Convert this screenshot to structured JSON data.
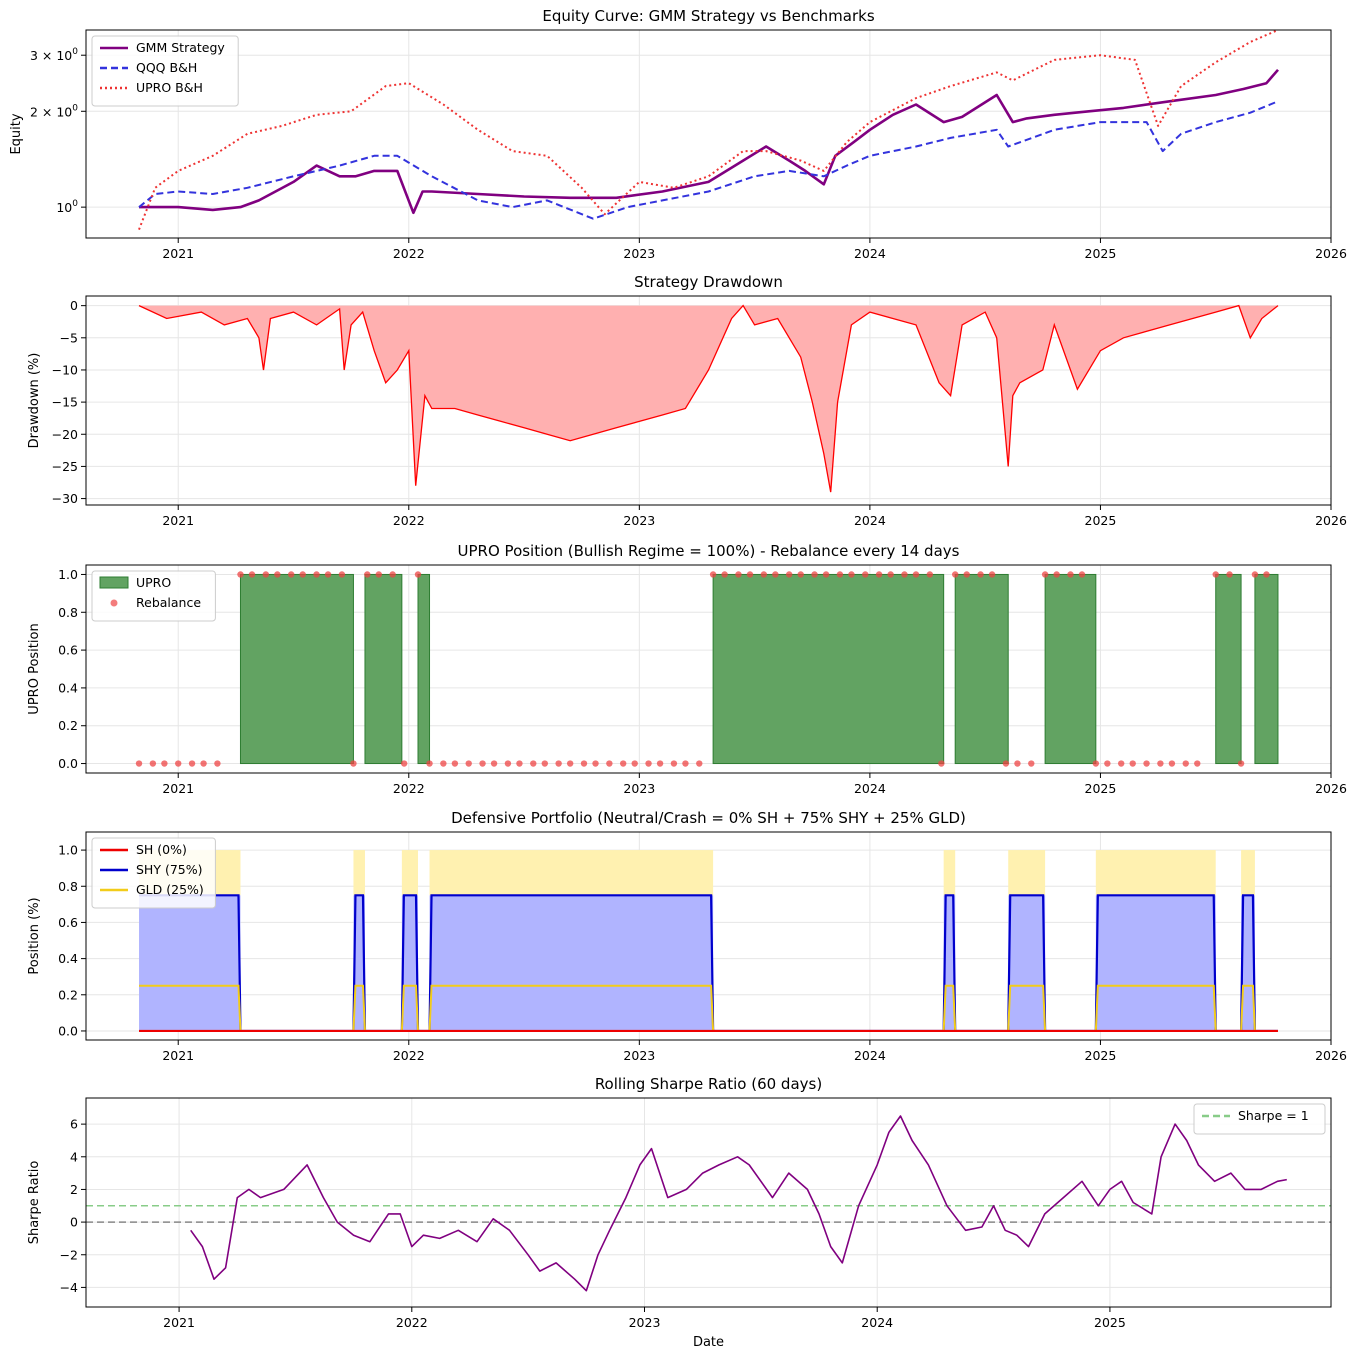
{
  "chart_data": [
    {
      "type": "line",
      "title": "Equity Curve: GMM Strategy vs Benchmarks",
      "xlabel": "",
      "ylabel": "Equity",
      "yscale": "log",
      "xlim": [
        2020.6,
        2026.0
      ],
      "ylim": [
        0.8,
        3.6
      ],
      "xticks": [
        "2021",
        "2022",
        "2023",
        "2024",
        "2025",
        "2026"
      ],
      "yticks": [
        {
          "value": 1,
          "base": "10",
          "exp": "0",
          "mult": ""
        },
        {
          "value": 2,
          "base": "10",
          "exp": "0",
          "mult": "2 × "
        },
        {
          "value": 3,
          "base": "10",
          "exp": "0",
          "mult": "3 × "
        }
      ],
      "grid": true,
      "legend": "top-left",
      "series": [
        {
          "name": "GMM Strategy",
          "color": "#800080",
          "style": "solid",
          "x": [
            2020.83,
            2021.0,
            2021.15,
            2021.27,
            2021.35,
            2021.5,
            2021.6,
            2021.7,
            2021.77,
            2021.85,
            2021.95,
            2022.02,
            2022.06,
            2022.1,
            2022.3,
            2022.5,
            2022.7,
            2022.9,
            2023.1,
            2023.3,
            2023.45,
            2023.55,
            2023.65,
            2023.72,
            2023.8,
            2023.85,
            2023.93,
            2024.0,
            2024.1,
            2024.2,
            2024.32,
            2024.4,
            2024.55,
            2024.62,
            2024.68,
            2024.8,
            2024.95,
            2025.1,
            2025.3,
            2025.5,
            2025.62,
            2025.72,
            2025.77
          ],
          "y": [
            1.0,
            1.0,
            0.98,
            1.0,
            1.05,
            1.2,
            1.35,
            1.25,
            1.25,
            1.3,
            1.3,
            0.96,
            1.12,
            1.12,
            1.1,
            1.08,
            1.07,
            1.07,
            1.12,
            1.2,
            1.4,
            1.55,
            1.4,
            1.3,
            1.18,
            1.45,
            1.6,
            1.75,
            1.95,
            2.1,
            1.85,
            1.92,
            2.25,
            1.85,
            1.9,
            1.95,
            2.0,
            2.05,
            2.15,
            2.25,
            2.35,
            2.45,
            2.7
          ]
        },
        {
          "name": "QQQ B&H",
          "color": "#3333dd",
          "style": "dashed",
          "x": [
            2020.83,
            2020.9,
            2021.0,
            2021.15,
            2021.3,
            2021.5,
            2021.7,
            2021.85,
            2021.95,
            2022.1,
            2022.3,
            2022.45,
            2022.6,
            2022.8,
            2022.95,
            2023.1,
            2023.3,
            2023.5,
            2023.65,
            2023.8,
            2023.9,
            2024.0,
            2024.2,
            2024.35,
            2024.55,
            2024.6,
            2024.8,
            2025.0,
            2025.2,
            2025.27,
            2025.35,
            2025.5,
            2025.65,
            2025.77
          ],
          "y": [
            1.0,
            1.1,
            1.12,
            1.1,
            1.15,
            1.25,
            1.35,
            1.45,
            1.45,
            1.25,
            1.05,
            1.0,
            1.05,
            0.92,
            1.0,
            1.05,
            1.12,
            1.25,
            1.3,
            1.25,
            1.35,
            1.45,
            1.55,
            1.65,
            1.75,
            1.55,
            1.75,
            1.85,
            1.85,
            1.5,
            1.7,
            1.85,
            1.98,
            2.15
          ]
        },
        {
          "name": "UPRO B&H",
          "color": "#ee3333",
          "style": "dotted",
          "x": [
            2020.83,
            2020.9,
            2021.0,
            2021.15,
            2021.3,
            2021.45,
            2021.6,
            2021.75,
            2021.9,
            2022.0,
            2022.15,
            2022.3,
            2022.45,
            2022.6,
            2022.75,
            2022.85,
            2023.0,
            2023.15,
            2023.3,
            2023.45,
            2023.55,
            2023.7,
            2023.8,
            2023.9,
            2024.0,
            2024.2,
            2024.35,
            2024.55,
            2024.62,
            2024.8,
            2025.0,
            2025.15,
            2025.25,
            2025.35,
            2025.5,
            2025.65,
            2025.77
          ],
          "y": [
            0.85,
            1.15,
            1.3,
            1.45,
            1.7,
            1.8,
            1.95,
            2.0,
            2.4,
            2.45,
            2.1,
            1.75,
            1.5,
            1.45,
            1.15,
            0.95,
            1.2,
            1.15,
            1.25,
            1.5,
            1.5,
            1.4,
            1.3,
            1.6,
            1.85,
            2.2,
            2.4,
            2.65,
            2.5,
            2.9,
            3.0,
            2.9,
            1.8,
            2.4,
            2.85,
            3.3,
            3.6
          ]
        }
      ]
    },
    {
      "type": "area",
      "title": "Strategy Drawdown",
      "xlabel": "",
      "ylabel": "Drawdown (%)",
      "xlim": [
        2020.6,
        2026.0
      ],
      "ylim": [
        -31,
        1.5
      ],
      "xticks": [
        "2021",
        "2022",
        "2023",
        "2024",
        "2025",
        "2026"
      ],
      "yticks": [
        0,
        -5,
        -10,
        -15,
        -20,
        -25,
        -30
      ],
      "ytick_labels": [
        "0",
        "−5",
        "−10",
        "−15",
        "−20",
        "−25",
        "−30"
      ],
      "grid": true,
      "series": [
        {
          "name": "",
          "color": "#ff0000",
          "fill": "#ffb0b0",
          "x": [
            2020.83,
            2020.95,
            2021.1,
            2021.2,
            2021.3,
            2021.35,
            2021.37,
            2021.4,
            2021.5,
            2021.6,
            2021.7,
            2021.72,
            2021.75,
            2021.8,
            2021.85,
            2021.9,
            2021.95,
            2022.0,
            2022.03,
            2022.07,
            2022.1,
            2022.2,
            2022.3,
            2022.4,
            2022.5,
            2022.6,
            2022.7,
            2022.8,
            2022.9,
            2023.0,
            2023.1,
            2023.2,
            2023.3,
            2023.4,
            2023.45,
            2023.5,
            2023.6,
            2023.7,
            2023.75,
            2023.8,
            2023.83,
            2023.86,
            2023.92,
            2024.0,
            2024.1,
            2024.2,
            2024.3,
            2024.35,
            2024.4,
            2024.5,
            2024.55,
            2024.6,
            2024.62,
            2024.65,
            2024.75,
            2024.8,
            2024.9,
            2025.0,
            2025.1,
            2025.3,
            2025.5,
            2025.6,
            2025.65,
            2025.7,
            2025.77
          ],
          "y": [
            0,
            -2,
            -1,
            -3,
            -2,
            -5,
            -10,
            -2,
            -1,
            -3,
            -0.5,
            -10,
            -3,
            -1,
            -7,
            -12,
            -10,
            -7,
            -28,
            -14,
            -16,
            -16,
            -17,
            -18,
            -19,
            -20,
            -21,
            -20,
            -19,
            -18,
            -17,
            -16,
            -10,
            -2,
            0,
            -3,
            -2,
            -8,
            -15,
            -23,
            -29,
            -15,
            -3,
            -1,
            -2,
            -3,
            -12,
            -14,
            -3,
            -1,
            -5,
            -25,
            -14,
            -12,
            -10,
            -3,
            -13,
            -7,
            -5,
            -3,
            -1,
            0,
            -5,
            -2,
            0
          ]
        }
      ]
    },
    {
      "type": "area",
      "title": "UPRO Position (Bullish Regime = 100%) - Rebalance every 14 days",
      "xlabel": "",
      "ylabel": "UPRO Position",
      "xlim": [
        2020.6,
        2026.0
      ],
      "ylim": [
        -0.05,
        1.05
      ],
      "xticks": [
        "2021",
        "2022",
        "2023",
        "2024",
        "2025",
        "2026"
      ],
      "yticks": [
        0.0,
        0.2,
        0.4,
        0.6,
        0.8,
        1.0
      ],
      "ytick_labels": [
        "0.0",
        "0.2",
        "0.4",
        "0.6",
        "0.8",
        "1.0"
      ],
      "grid": true,
      "legend": "top-left",
      "series": [
        {
          "name": "UPRO",
          "color": "#2e7d32",
          "fill": "#62a362",
          "periods": [
            [
              2021.27,
              2021.76
            ],
            [
              2021.81,
              2021.97
            ],
            [
              2022.04,
              2022.09
            ],
            [
              2023.32,
              2024.32
            ],
            [
              2024.37,
              2024.6
            ],
            [
              2024.76,
              2024.98
            ],
            [
              2025.5,
              2025.61
            ],
            [
              2025.67,
              2025.77
            ]
          ]
        },
        {
          "name": "Rebalance",
          "color": "#ee4444",
          "x": [
            2020.83,
            2020.89,
            2020.94,
            2021.0,
            2021.06,
            2021.11,
            2021.17,
            2021.27,
            2021.32,
            2021.38,
            2021.43,
            2021.49,
            2021.54,
            2021.6,
            2021.65,
            2021.71,
            2021.76,
            2021.82,
            2021.87,
            2021.93,
            2021.98,
            2022.04,
            2022.09,
            2022.15,
            2022.2,
            2022.26,
            2022.32,
            2022.37,
            2022.43,
            2022.48,
            2022.54,
            2022.59,
            2022.65,
            2022.7,
            2022.76,
            2022.81,
            2022.87,
            2022.93,
            2022.98,
            2023.04,
            2023.09,
            2023.15,
            2023.2,
            2023.26,
            2023.32,
            2023.37,
            2023.43,
            2023.48,
            2023.54,
            2023.59,
            2023.65,
            2023.7,
            2023.76,
            2023.81,
            2023.87,
            2023.92,
            2023.98,
            2024.04,
            2024.09,
            2024.15,
            2024.2,
            2024.26,
            2024.31,
            2024.37,
            2024.42,
            2024.48,
            2024.53,
            2024.59,
            2024.64,
            2024.7,
            2024.76,
            2024.81,
            2024.87,
            2024.92,
            2024.98,
            2025.03,
            2025.09,
            2025.14,
            2025.2,
            2025.26,
            2025.31,
            2025.37,
            2025.42,
            2025.5,
            2025.56,
            2025.61,
            2025.67,
            2025.72
          ],
          "y": [
            0,
            0,
            0,
            0,
            0,
            0,
            0,
            1,
            1,
            1,
            1,
            1,
            1,
            1,
            1,
            1,
            0,
            1,
            1,
            1,
            0,
            1,
            0,
            0,
            0,
            0,
            0,
            0,
            0,
            0,
            0,
            0,
            0,
            0,
            0,
            0,
            0,
            0,
            0,
            0,
            0,
            0,
            0,
            0,
            1,
            1,
            1,
            1,
            1,
            1,
            1,
            1,
            1,
            1,
            1,
            1,
            1,
            1,
            1,
            1,
            1,
            1,
            0,
            1,
            1,
            1,
            1,
            0,
            0,
            0,
            1,
            1,
            1,
            1,
            0,
            0,
            0,
            0,
            0,
            0,
            0,
            0,
            0,
            1,
            1,
            0,
            1,
            1
          ]
        }
      ]
    },
    {
      "type": "area",
      "title": "Defensive Portfolio (Neutral/Crash = 0% SH + 75% SHY + 25% GLD)",
      "xlabel": "",
      "ylabel": "Position (%)",
      "xlim": [
        2020.6,
        2026.0
      ],
      "ylim": [
        -0.05,
        1.1
      ],
      "xticks": [
        "2021",
        "2022",
        "2023",
        "2024",
        "2025",
        "2026"
      ],
      "yticks": [
        0.0,
        0.2,
        0.4,
        0.6,
        0.8,
        1.0
      ],
      "ytick_labels": [
        "0.0",
        "0.2",
        "0.4",
        "0.6",
        "0.8",
        "1.0"
      ],
      "grid": true,
      "legend": "top-left",
      "defensive_periods": [
        [
          2020.83,
          2021.27
        ],
        [
          2021.76,
          2021.81
        ],
        [
          2021.97,
          2022.04
        ],
        [
          2022.09,
          2023.32
        ],
        [
          2024.32,
          2024.37
        ],
        [
          2024.6,
          2024.76
        ],
        [
          2024.98,
          2025.5
        ],
        [
          2025.61,
          2025.67
        ]
      ],
      "x_end": 2025.77,
      "series": [
        {
          "name": "SH (0%)",
          "color": "#ee0000",
          "value": 0.0
        },
        {
          "name": "SHY (75%)",
          "color": "#0000cc",
          "fill": "#b0b4ff",
          "value": 0.75
        },
        {
          "name": "GLD (25%)",
          "color": "#f2cc1a",
          "fill": "#fff1b0",
          "value": 0.25
        }
      ]
    },
    {
      "type": "line",
      "title": "Rolling Sharpe Ratio (60 days)",
      "xlabel": "Date",
      "ylabel": "Sharpe Ratio",
      "xlim": [
        2020.6,
        2025.95
      ],
      "ylim": [
        -5.2,
        7.6
      ],
      "xticks": [
        "2021",
        "2022",
        "2023",
        "2024",
        "2025"
      ],
      "yticks": [
        -4,
        -2,
        0,
        2,
        4,
        6
      ],
      "ytick_labels": [
        "−4",
        "−2",
        "0",
        "2",
        "4",
        "6"
      ],
      "grid": true,
      "legend": "top-right",
      "reference_lines": [
        {
          "name": "Sharpe = 1",
          "value": 1,
          "color": "#88cc88",
          "style": "dashed"
        },
        {
          "name": "",
          "value": 0,
          "color": "#888888",
          "style": "dashed"
        }
      ],
      "series": [
        {
          "name": "",
          "color": "#800080",
          "x": [
            2021.05,
            2021.1,
            2021.15,
            2021.2,
            2021.25,
            2021.3,
            2021.35,
            2021.45,
            2021.55,
            2021.62,
            2021.68,
            2021.75,
            2021.82,
            2021.9,
            2021.95,
            2022.0,
            2022.05,
            2022.12,
            2022.2,
            2022.28,
            2022.35,
            2022.42,
            2022.5,
            2022.55,
            2022.62,
            2022.7,
            2022.75,
            2022.8,
            2022.85,
            2022.92,
            2022.98,
            2023.03,
            2023.1,
            2023.18,
            2023.25,
            2023.32,
            2023.4,
            2023.45,
            2023.55,
            2023.62,
            2023.7,
            2023.75,
            2023.8,
            2023.85,
            2023.92,
            2024.0,
            2024.05,
            2024.1,
            2024.15,
            2024.22,
            2024.3,
            2024.38,
            2024.45,
            2024.5,
            2024.55,
            2024.6,
            2024.65,
            2024.72,
            2024.8,
            2024.88,
            2024.95,
            2025.0,
            2025.05,
            2025.1,
            2025.18,
            2025.22,
            2025.28,
            2025.33,
            2025.38,
            2025.45,
            2025.52,
            2025.58,
            2025.65,
            2025.72,
            2025.76
          ],
          "y": [
            -0.5,
            -1.5,
            -3.5,
            -2.8,
            1.5,
            2.0,
            1.5,
            2.0,
            3.5,
            1.5,
            0.0,
            -0.8,
            -1.2,
            0.5,
            0.5,
            -1.5,
            -0.8,
            -1.0,
            -0.5,
            -1.2,
            0.2,
            -0.5,
            -2.0,
            -3.0,
            -2.5,
            -3.5,
            -4.2,
            -2.0,
            -0.5,
            1.5,
            3.5,
            4.5,
            1.5,
            2.0,
            3.0,
            3.5,
            4.0,
            3.5,
            1.5,
            3.0,
            2.0,
            0.5,
            -1.5,
            -2.5,
            1.0,
            3.5,
            5.5,
            6.5,
            5.0,
            3.5,
            1.0,
            -0.5,
            -0.3,
            1.0,
            -0.5,
            -0.8,
            -1.5,
            0.5,
            1.5,
            2.5,
            1.0,
            2.0,
            2.5,
            1.2,
            0.5,
            4.0,
            6.0,
            5.0,
            3.5,
            2.5,
            3.0,
            2.0,
            2.0,
            2.5,
            2.6
          ]
        }
      ]
    }
  ]
}
